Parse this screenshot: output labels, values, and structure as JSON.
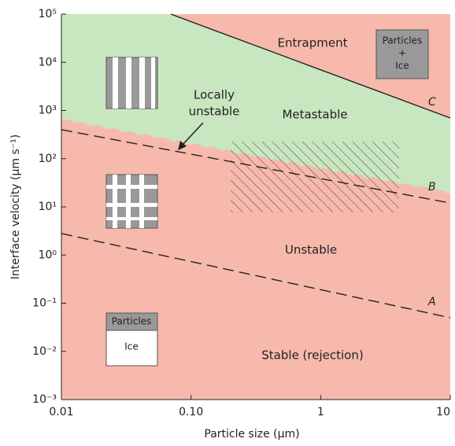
{
  "chart_data": {
    "type": "line",
    "x_label": "Particle size (µm)",
    "y_label": "Interface velocity (µm s⁻¹)",
    "log_x": true,
    "log_y": true,
    "xlim": [
      0.01,
      10
    ],
    "ylim": [
      0.001,
      100000
    ],
    "xticks": [
      0.01,
      {
        "value": 0.1,
        "label": "0.10"
      },
      1,
      10
    ],
    "yticks": [
      {
        "value": 0.001,
        "label": "10⁻³"
      },
      {
        "value": 0.01,
        "label": "10⁻²"
      },
      {
        "value": 0.1,
        "label": "10⁻¹"
      },
      {
        "value": 1,
        "label": "10⁰"
      },
      {
        "value": 10,
        "label": "10¹"
      },
      {
        "value": 100,
        "label": "10²"
      },
      {
        "value": 1000,
        "label": "10³"
      },
      {
        "value": 10000,
        "label": "10⁴"
      },
      {
        "value": 100000,
        "label": "10⁵"
      }
    ],
    "series": [
      {
        "name": "C",
        "color": "#222222",
        "style": "solid",
        "x": [
          0.07,
          10
        ],
        "values": [
          100000,
          700
        ]
      },
      {
        "name": "B",
        "color": "#222222",
        "style": "dashed",
        "x": [
          0.01,
          10
        ],
        "values": [
          400,
          12
        ]
      },
      {
        "name": "A",
        "color": "#222222",
        "style": "dashed",
        "x": [
          0.01,
          10
        ],
        "values": [
          2.8,
          0.05
        ]
      }
    ],
    "background_color": "#f7b9ac",
    "metastable_color": "#c8e6c0",
    "regions": [
      "Entrapment",
      "Metastable",
      "Unstable",
      "Stable (rejection)"
    ],
    "annotation_lines": [
      "Locally",
      "unstable"
    ],
    "inset_top_right": [
      "Particles",
      "+",
      "Ice"
    ],
    "inset_bottom_left": [
      "Particles",
      "Ice"
    ]
  }
}
